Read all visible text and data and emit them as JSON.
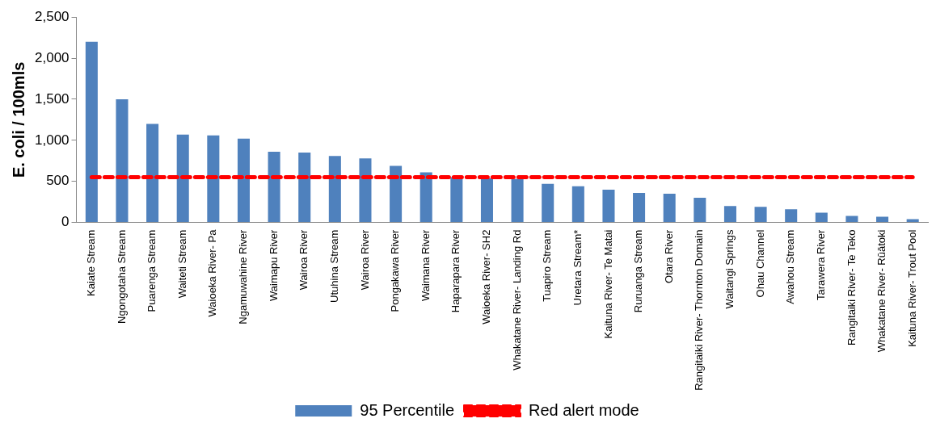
{
  "chart_data": {
    "type": "bar",
    "ylabel": "E. coli / 100mls",
    "categories": [
      "Kaiate Stream",
      "Ngongotaha Stream",
      "Puarenga Stream",
      "Waiteti Stream",
      "Waioeka River- Pa",
      "Ngamuwahine River",
      "Waimapu River",
      "Wairoa River",
      "Utuhina Stream",
      "Wairoa River",
      "Pongakawa River",
      "Waimana River",
      "Haparapara River",
      "Waioeka River- SH2",
      "Whakatane River- Landing Rd",
      "Tuapiro Stream",
      "Uretara Stream*",
      "Kaituna River- Te Matai",
      "Ruruanga Stream",
      "Otara River",
      "Rangitaiki River- Thornton Domain",
      "Waitangi Springs",
      "Ohau Channel",
      "Awahou Stream",
      "Tarawera River",
      "Rangitaiki River- Te Teko",
      "Whakatane River- Rūātoki",
      "Kaituna River- Trout Pool"
    ],
    "series": [
      {
        "name": "95 Percentile",
        "color": "#4f81bd",
        "values": [
          2200,
          1500,
          1200,
          1070,
          1060,
          1020,
          860,
          850,
          810,
          780,
          690,
          610,
          550,
          540,
          530,
          470,
          440,
          400,
          360,
          350,
          300,
          200,
          190,
          160,
          120,
          80,
          70,
          40
        ]
      },
      {
        "name": "Red alert mode",
        "type": "line",
        "color": "#ff0000",
        "line_style": "dashed",
        "marker": "none",
        "values": [
          550,
          550,
          550,
          550,
          550,
          550,
          550,
          550,
          550,
          550,
          550,
          550,
          550,
          550,
          550,
          550,
          550,
          550,
          550,
          550,
          550,
          550,
          550,
          550,
          550,
          550,
          550,
          550
        ]
      }
    ],
    "ylim": [
      0,
      2500
    ],
    "yticks": [
      {
        "value": 0,
        "label": "0"
      },
      {
        "value": 500,
        "label": "500"
      },
      {
        "value": 1000,
        "label": "1,000"
      },
      {
        "value": 1500,
        "label": "1,500"
      },
      {
        "value": 2000,
        "label": "2,000"
      },
      {
        "value": 2500,
        "label": "2,500"
      }
    ],
    "grid": false,
    "legend": "bottom"
  }
}
